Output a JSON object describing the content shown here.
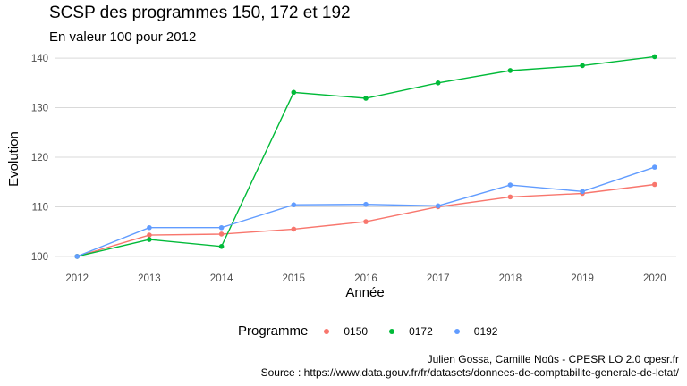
{
  "chart_data": {
    "type": "line",
    "title": "SCSP des programmes 150, 172 et 192",
    "subtitle": "En valeur 100 pour 2012",
    "xlabel": "Année",
    "ylabel": "Evolution",
    "x": [
      2012,
      2013,
      2014,
      2015,
      2016,
      2017,
      2018,
      2019,
      2020
    ],
    "xlim": [
      2011.7,
      2020.3
    ],
    "ylim": [
      98,
      142
    ],
    "yticks": [
      100,
      110,
      120,
      130,
      140
    ],
    "grid": true,
    "legend_title": "Programme",
    "legend_position": "bottom",
    "series": [
      {
        "name": "0150",
        "color": "#F8766D",
        "values": [
          100,
          104.3,
          104.5,
          105.5,
          107.0,
          110.0,
          112.0,
          112.7,
          114.5
        ]
      },
      {
        "name": "0172",
        "color": "#00BA38",
        "values": [
          100,
          103.4,
          102.0,
          133.1,
          131.9,
          135.0,
          137.5,
          138.5,
          140.3
        ]
      },
      {
        "name": "0192",
        "color": "#619CFF",
        "values": [
          100,
          105.8,
          105.8,
          110.4,
          110.5,
          110.2,
          114.4,
          113.1,
          118.0
        ]
      }
    ],
    "caption_line1": "Julien Gossa, Camille Noûs - CPESR LO 2.0 cpesr.fr",
    "caption_line2": "Source : https://www.data.gouv.fr/fr/datasets/donnees-de-comptabilite-generale-de-letat/"
  }
}
